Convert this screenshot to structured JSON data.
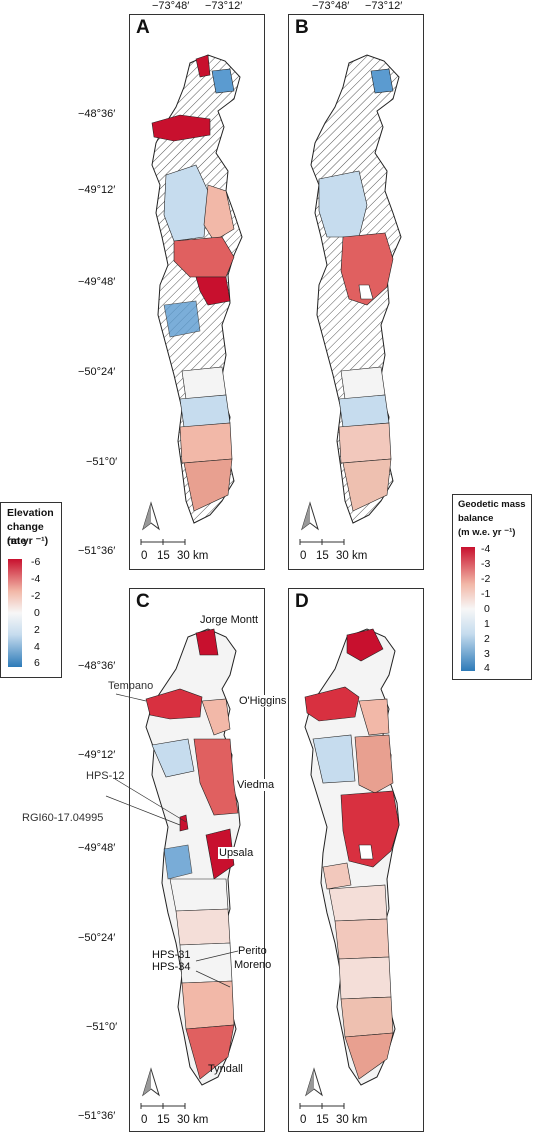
{
  "lon_ticks": [
    "−73°48′",
    "−73°12′"
  ],
  "lat_ticks": [
    "−48°36′",
    "−49°12′",
    "−49°48′",
    "−50°24′",
    "−51°0′",
    "−51°36′"
  ],
  "panels": {
    "A": {
      "letter": "A"
    },
    "B": {
      "letter": "B"
    },
    "C": {
      "letter": "C"
    },
    "D": {
      "letter": "D"
    }
  },
  "scale_bar": {
    "labels": [
      "0",
      "15",
      "30 km"
    ]
  },
  "legend_elevation": {
    "title_line1": "Elevation",
    "title_line2": "change rate",
    "title_line3": "(m yr ⁻¹)",
    "ticks": [
      "-6",
      "-4",
      "-2",
      "0",
      "2",
      "4",
      "6"
    ]
  },
  "legend_mass": {
    "title_line1": "Geodetic mass",
    "title_line2": "balance",
    "title_line3": "(m w.e. yr ⁻¹)",
    "ticks": [
      "-4",
      "-3",
      "-2",
      "-1",
      "0",
      "1",
      "2",
      "3",
      "4"
    ]
  },
  "glacier_labels": {
    "jorge_montt": "Jorge Montt",
    "tempano": "Tempano",
    "ohiggins": "O'Higgins",
    "hps12": "HPS-12",
    "viedma": "Viedma",
    "rgi": "RGI60-17.04995",
    "upsala": "Upsala",
    "perito_moreno_1": "Perito",
    "perito_moreno_2": "Moreno",
    "hps31": "HPS-31",
    "hps34": "HPS-34",
    "tyndall": "Tyndall"
  },
  "colors": {
    "strong_red": "#c8102e",
    "red": "#e06060",
    "light_red": "#f2b8a8",
    "white": "#f4f4f4",
    "light_blue": "#c6dcee",
    "blue": "#5b9bd0"
  }
}
